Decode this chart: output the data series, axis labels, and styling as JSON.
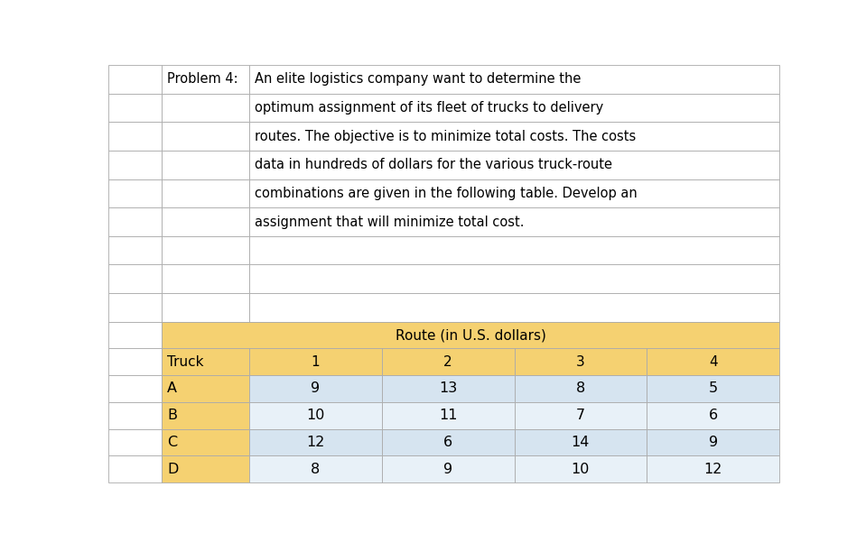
{
  "problem_label": "Problem 4:",
  "problem_text_lines": [
    "An elite logistics company want to determine the",
    "optimum assignment of its fleet of trucks to delivery",
    "routes. The objective is to minimize total costs. The costs",
    "data in hundreds of dollars for the various truck-route",
    "combinations are given in the following table. Develop an",
    "assignment that will minimize total cost."
  ],
  "route_header": "Route (in U.S. dollars)",
  "col_headers": [
    "Truck",
    "1",
    "2",
    "3",
    "4"
  ],
  "row_labels": [
    "A",
    "B",
    "C",
    "D"
  ],
  "table_data": [
    [
      9,
      13,
      8,
      5
    ],
    [
      10,
      11,
      7,
      6
    ],
    [
      12,
      6,
      14,
      9
    ],
    [
      8,
      9,
      10,
      12
    ]
  ],
  "header_bg_color": "#F5D171",
  "row_even_color": "#D6E4F0",
  "row_odd_color": "#E8F1F8",
  "label_col_color": "#F5D171",
  "grid_color": "#AAAAAA",
  "text_color": "#000000",
  "background_color": "#FFFFFF",
  "figsize": [
    9.59,
    6.01
  ],
  "dpi": 100
}
